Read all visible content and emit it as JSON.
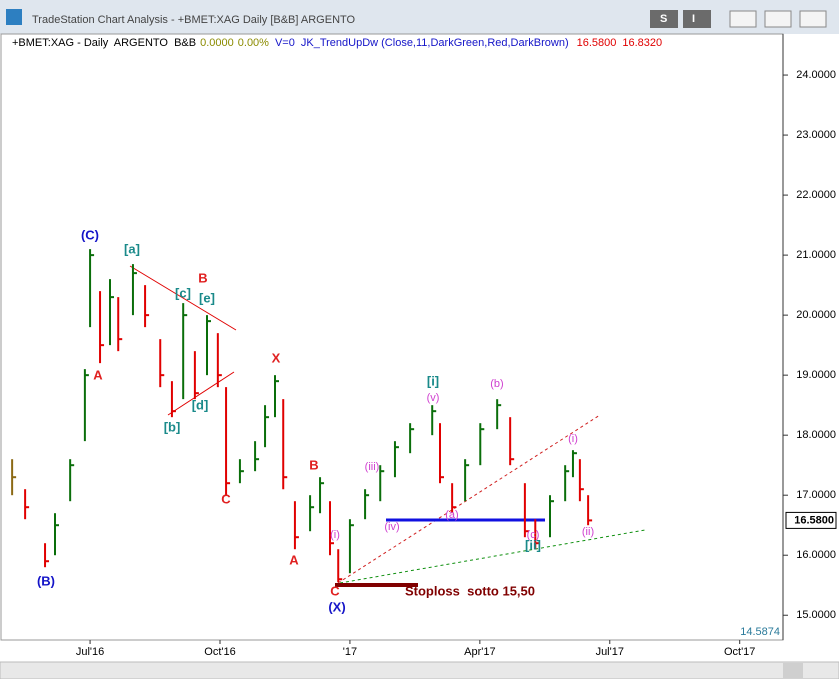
{
  "window": {
    "title": "TradeStation Chart Analysis - +BMET:XAG Daily [B&B] ARGENTO",
    "buttons": [
      "S",
      "I"
    ]
  },
  "info": {
    "symbol": "+BMET:XAG - Daily  ARGENTO  B&B",
    "change": "0.0000",
    "change_pct": "0.00%",
    "volume": "V=0",
    "indicator": "JK_TrendUpDw (Close,11,DarkGreen,Red,DarkBrown)",
    "value1": "16.5800",
    "value2": "16.8320"
  },
  "chart_data": {
    "type": "ohlc",
    "x": [
      5.2,
      5.5,
      5.96,
      6.19,
      6.54,
      6.88,
      7.0,
      7.23,
      7.46,
      7.65,
      7.99,
      8.27,
      8.62,
      8.89,
      9.15,
      9.42,
      9.7,
      9.95,
      10.14,
      10.46,
      10.81,
      11.04,
      11.27,
      11.46,
      11.73,
      12.08,
      12.31,
      12.54,
      12.73,
      13.0,
      13.35,
      13.7,
      14.04,
      14.39,
      14.9,
      15.08,
      15.36,
      15.66,
      16.01,
      16.4,
      16.7,
      17.04,
      17.28,
      17.62,
      17.97,
      18.15,
      18.31,
      18.5
    ],
    "high": [
      17.6,
      17.1,
      16.2,
      16.7,
      17.6,
      19.1,
      21.1,
      20.4,
      20.6,
      20.3,
      20.85,
      20.5,
      19.6,
      18.9,
      20.2,
      19.4,
      20.0,
      19.7,
      18.8,
      17.6,
      17.9,
      18.5,
      19.0,
      18.6,
      16.9,
      17.0,
      17.3,
      16.9,
      16.1,
      16.6,
      17.1,
      17.5,
      17.9,
      18.2,
      18.5,
      18.2,
      17.2,
      17.6,
      18.2,
      18.6,
      18.3,
      17.2,
      16.6,
      17.0,
      17.5,
      17.75,
      17.6,
      17.0
    ],
    "low": [
      17.0,
      16.6,
      15.8,
      16.0,
      16.9,
      17.9,
      19.8,
      19.2,
      19.5,
      19.4,
      20.0,
      19.8,
      18.8,
      18.3,
      18.6,
      18.6,
      19.0,
      18.8,
      17.0,
      17.2,
      17.4,
      17.8,
      18.3,
      17.1,
      16.1,
      16.4,
      16.7,
      16.0,
      15.55,
      15.7,
      16.6,
      16.9,
      17.3,
      17.7,
      18.0,
      17.2,
      16.7,
      16.9,
      17.5,
      18.1,
      17.5,
      16.3,
      16.1,
      16.3,
      16.9,
      17.3,
      16.9,
      16.5
    ],
    "close": [
      17.3,
      16.8,
      15.9,
      16.5,
      17.5,
      19.0,
      21.0,
      19.5,
      20.3,
      19.6,
      20.7,
      20.0,
      19.0,
      18.4,
      20.0,
      18.7,
      19.9,
      19.0,
      17.2,
      17.4,
      17.6,
      18.3,
      18.9,
      17.3,
      16.3,
      16.8,
      17.2,
      16.2,
      15.6,
      16.5,
      17.0,
      17.4,
      17.8,
      18.1,
      18.4,
      17.3,
      16.8,
      17.5,
      18.1,
      18.5,
      17.6,
      16.4,
      16.2,
      16.9,
      17.4,
      17.7,
      17.1,
      16.58
    ],
    "up_color": "#0a6e0a",
    "down_color": "#e00000",
    "flat_color": "#8b6914",
    "xlim": [
      4.92,
      23.0
    ],
    "xticks": [
      {
        "value": 7,
        "label": "Jul'16"
      },
      {
        "value": 10,
        "label": "Oct'16"
      },
      {
        "value": 13,
        "label": "'17"
      },
      {
        "value": 16,
        "label": "Apr'17"
      },
      {
        "value": 19,
        "label": "Jul'17"
      },
      {
        "value": 22,
        "label": "Oct'17"
      }
    ],
    "ylim": [
      14.5874,
      24.684
    ],
    "yticks": [
      {
        "value": 15,
        "label": "15.0000"
      },
      {
        "value": 16,
        "label": "16.0000"
      },
      {
        "value": 17,
        "label": "17.0000"
      },
      {
        "value": 18,
        "label": "18.0000"
      },
      {
        "value": 19,
        "label": "19.0000"
      },
      {
        "value": 20,
        "label": "20.0000"
      },
      {
        "value": 21,
        "label": "21.0000"
      },
      {
        "value": 22,
        "label": "22.0000"
      },
      {
        "value": 23,
        "label": "23.0000"
      },
      {
        "value": 24,
        "label": "24.0000"
      }
    ],
    "last_price": {
      "value": 16.58,
      "label": "16.5800"
    },
    "annotations": [
      {
        "text": "(C)",
        "color": "#1414c8"
      },
      {
        "text": "[a]",
        "color": "#1a8a8a"
      },
      {
        "text": "A",
        "color": "#e02020"
      },
      {
        "text": "B",
        "color": "#e02020"
      },
      {
        "text": "[c]",
        "color": "#1a8a8a"
      },
      {
        "text": "[e]",
        "color": "#1a8a8a"
      },
      {
        "text": "[b]",
        "color": "#1a8a8a"
      },
      {
        "text": "[d]",
        "color": "#1a8a8a"
      },
      {
        "text": "C",
        "color": "#e02020"
      },
      {
        "text": "X",
        "color": "#e02020"
      },
      {
        "text": "B",
        "color": "#e02020"
      },
      {
        "text": "A",
        "color": "#e02020"
      },
      {
        "text": "(B)",
        "color": "#1414c8"
      },
      {
        "text": "C",
        "color": "#e02020"
      },
      {
        "text": "(X)",
        "color": "#1414c8"
      },
      {
        "text": "(i)",
        "color": "#d040d0"
      },
      {
        "text": "(iii)",
        "color": "#d040d0"
      },
      {
        "text": "[i]",
        "color": "#1a8a8a"
      },
      {
        "text": "(v)",
        "color": "#d040d0"
      },
      {
        "text": "(b)",
        "color": "#d040d0"
      },
      {
        "text": "(iv)",
        "color": "#d040d0"
      },
      {
        "text": "(a)",
        "color": "#d040d0"
      },
      {
        "text": "(i)",
        "color": "#d040d0"
      },
      {
        "text": "(ii)",
        "color": "#d040d0"
      },
      {
        "text": "(c)",
        "color": "#d040d0"
      },
      {
        "text": "[ii]",
        "color": "#1a8a8a"
      },
      {
        "text": "Stoploss  sotto 15,50",
        "color": "#800000"
      }
    ]
  }
}
